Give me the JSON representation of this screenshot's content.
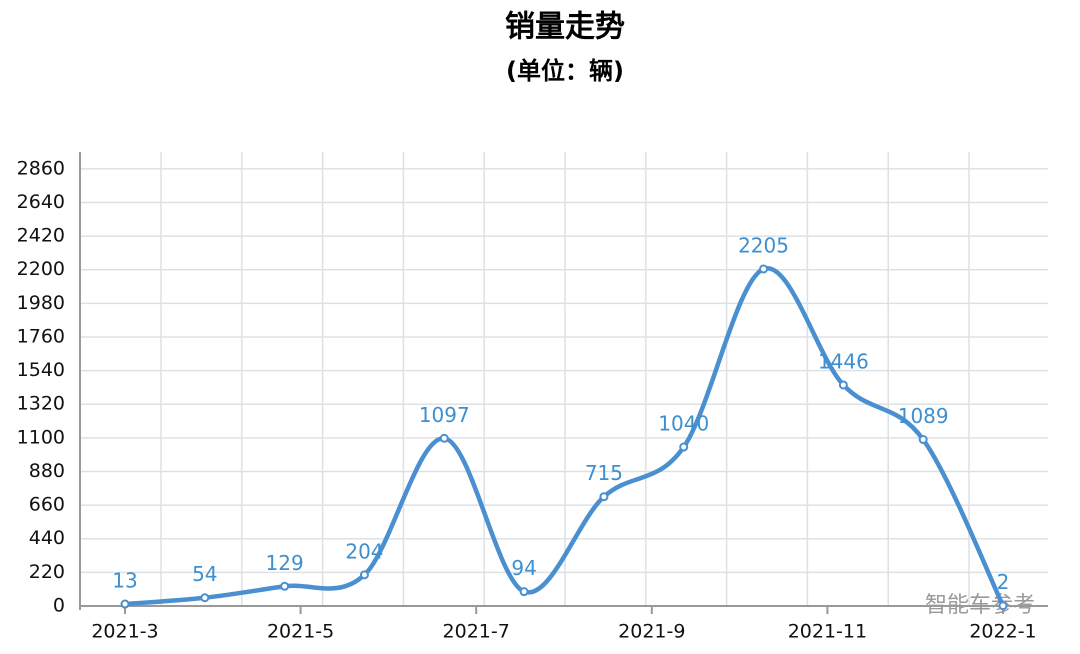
{
  "chart_data": {
    "type": "line",
    "title": "销量走势",
    "subtitle": "(单位：辆)",
    "categories": [
      null,
      null,
      null,
      null,
      null,
      null,
      null,
      null,
      null,
      null,
      null,
      null
    ],
    "xticks": [
      "2021-3",
      "2021-5",
      "2021-7",
      "2021-9",
      "2021-11",
      "2022-1"
    ],
    "series": [
      {
        "name": "销量",
        "color": "#4a8fd0",
        "values": [
          13,
          54,
          129,
          204,
          1097,
          94,
          715,
          1040,
          2205,
          1446,
          1089,
          2
        ]
      }
    ],
    "ylim": [
      0,
      2970
    ],
    "yticks": [
      0,
      220,
      440,
      660,
      880,
      1100,
      1320,
      1540,
      1760,
      1980,
      2200,
      2420,
      2640,
      2860
    ],
    "grid": true,
    "smooth": true,
    "annotations": [
      "智能车参考"
    ]
  }
}
